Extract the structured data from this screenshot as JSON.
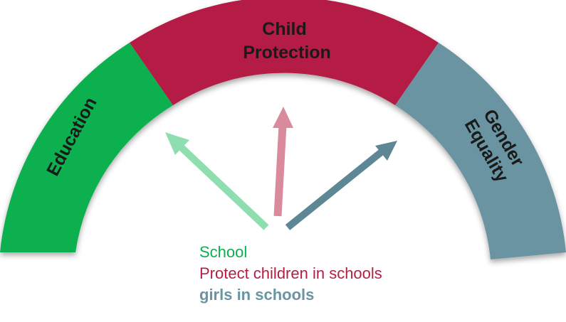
{
  "segments": [
    {
      "label": "Education",
      "color": "#0ab04f"
    },
    {
      "label_lines": [
        "Child",
        "Protection"
      ],
      "color": "#b51e44"
    },
    {
      "label_lines": [
        "Gender",
        "Equality"
      ],
      "color": "#6a94a2"
    }
  ],
  "arrows": {
    "left_color": "#8fdeb0",
    "middle_color": "#d98a9b",
    "right_color": "#5e8796"
  },
  "legend": {
    "school": {
      "text": "School",
      "color": "#0ab04f"
    },
    "protect": {
      "text": "Protect children in schools",
      "color": "#b51e44"
    },
    "girls": {
      "text": "girls in schools",
      "color": "#6a94a2"
    }
  }
}
